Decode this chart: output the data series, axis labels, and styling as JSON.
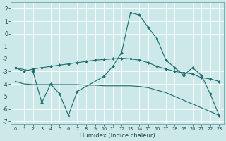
{
  "xlabel": "Humidex (Indice chaleur)",
  "bg_color": "#cce8e8",
  "grid_color": "#ffffff",
  "line_color": "#1a6b6b",
  "xlim": [
    -0.5,
    23.5
  ],
  "ylim": [
    -7.2,
    2.5
  ],
  "yticks": [
    -7,
    -6,
    -5,
    -4,
    -3,
    -2,
    -1,
    0,
    1,
    2
  ],
  "xticks": [
    0,
    1,
    2,
    3,
    4,
    5,
    6,
    7,
    8,
    9,
    10,
    11,
    12,
    13,
    14,
    15,
    16,
    17,
    18,
    19,
    20,
    21,
    22,
    23
  ],
  "line1_x": [
    0,
    2,
    3,
    4,
    5,
    6,
    7,
    10,
    11,
    12,
    13,
    14,
    15,
    16,
    17,
    18,
    19,
    20,
    21,
    22,
    23
  ],
  "line1_y": [
    -2.7,
    -3.0,
    -5.5,
    -4.0,
    -4.8,
    -6.5,
    -4.6,
    -3.4,
    -2.6,
    -1.5,
    1.7,
    1.5,
    0.5,
    -0.4,
    -2.1,
    -2.7,
    -3.3,
    -2.7,
    -3.3,
    -4.8,
    -6.5
  ],
  "line2_x": [
    0,
    1,
    2,
    3,
    4,
    5,
    6,
    7,
    8,
    9,
    10,
    11,
    12,
    13,
    14,
    15,
    16,
    17,
    18,
    19,
    20,
    21,
    22,
    23
  ],
  "line2_y": [
    -2.7,
    -3.0,
    -2.8,
    -2.7,
    -2.6,
    -2.5,
    -2.4,
    -2.3,
    -2.2,
    -2.1,
    -2.05,
    -2.0,
    -1.95,
    -2.0,
    -2.1,
    -2.3,
    -2.6,
    -2.8,
    -3.0,
    -3.1,
    -3.2,
    -3.5,
    -3.6,
    -3.8
  ],
  "line3_x": [
    0,
    1,
    2,
    3,
    4,
    5,
    6,
    7,
    8,
    9,
    10,
    11,
    12,
    13,
    14,
    15,
    16,
    17,
    18,
    19,
    20,
    21,
    22,
    23
  ],
  "line3_y": [
    -3.8,
    -4.0,
    -4.05,
    -4.05,
    -4.05,
    -4.05,
    -4.05,
    -4.05,
    -4.1,
    -4.1,
    -4.15,
    -4.15,
    -4.15,
    -4.15,
    -4.2,
    -4.3,
    -4.5,
    -4.7,
    -5.0,
    -5.3,
    -5.6,
    -5.9,
    -6.2,
    -6.5
  ]
}
